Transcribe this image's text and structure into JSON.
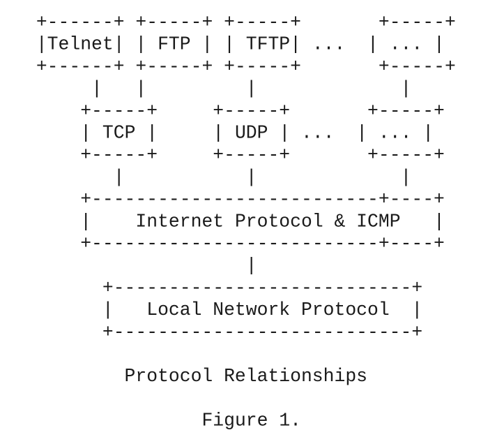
{
  "diagram": {
    "rows": [
      " +------+ +-----+ +-----+       +-----+",
      " |Telnet| | FTP | | TFTP| ...  | ... |",
      " +------+ +-----+ +-----+       +-----+",
      "      |   |         |             |",
      "     +-----+     +-----+       +-----+",
      "     | TCP |     | UDP | ...  | ... |",
      "     +-----+     +-----+       +-----+",
      "        |           |             |",
      "     +--------------------------+----+",
      "     |    Internet Protocol & ICMP   |",
      "     +--------------------------+----+",
      "                    |",
      "       +---------------------------+",
      "       |   Local Network Protocol  |",
      "       +---------------------------+",
      "",
      "         Protocol Relationships",
      "",
      "                Figure 1."
    ]
  }
}
